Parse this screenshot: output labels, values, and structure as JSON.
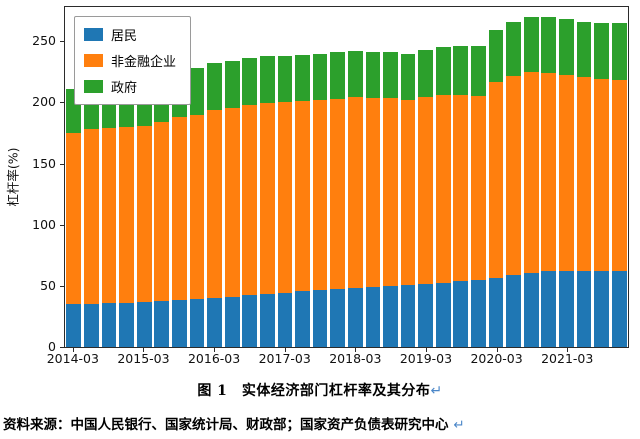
{
  "chart_data": {
    "type": "bar",
    "stacked": true,
    "title": "",
    "xlabel": "",
    "ylabel": "杠杆率(%)",
    "ylim": [
      0,
      278
    ],
    "yticks": [
      0,
      50,
      100,
      150,
      200,
      250
    ],
    "grid": false,
    "legend_position": "upper left",
    "categories": [
      "2014-03",
      "2014-06",
      "2014-09",
      "2014-12",
      "2015-03",
      "2015-06",
      "2015-09",
      "2015-12",
      "2016-03",
      "2016-06",
      "2016-09",
      "2016-12",
      "2017-03",
      "2017-06",
      "2017-09",
      "2017-12",
      "2018-03",
      "2018-06",
      "2018-09",
      "2018-12",
      "2019-03",
      "2019-06",
      "2019-09",
      "2019-12",
      "2020-03",
      "2020-06",
      "2020-09",
      "2020-12",
      "2021-03",
      "2021-06",
      "2021-09",
      "2021-12"
    ],
    "xtick_labels": [
      "2014-03",
      "2015-03",
      "2016-03",
      "2017-03",
      "2018-03",
      "2019-03",
      "2020-03",
      "2021-03"
    ],
    "xtick_every": 4,
    "series": [
      {
        "name": "居民",
        "color": "#1f77b4",
        "values": [
          35,
          35.5,
          36,
          36.2,
          36.4,
          37.5,
          38.5,
          39.2,
          40,
          41,
          42.2,
          43.2,
          44.2,
          45.5,
          46.5,
          47.4,
          48.2,
          49.2,
          50,
          50.7,
          51.5,
          52.5,
          53.7,
          54.5,
          56.5,
          58.5,
          60.5,
          62.2,
          62,
          62,
          61.8,
          62.2
        ]
      },
      {
        "name": "非金融企业",
        "color": "#ff7f0e",
        "values": [
          140,
          143,
          143,
          143.3,
          144.1,
          146.5,
          149.3,
          150.3,
          154,
          154.8,
          155.3,
          156,
          156,
          156,
          155.7,
          155.4,
          156.3,
          154.5,
          153.4,
          151.3,
          153.2,
          153.5,
          152.3,
          150.5,
          160,
          163.5,
          164.5,
          162.1,
          160.5,
          158.8,
          157.6,
          156
        ]
      },
      {
        "name": "政府",
        "color": "#2ca02c",
        "values": [
          36,
          36.5,
          37,
          37.5,
          37.5,
          38,
          38.2,
          38.5,
          38,
          38.2,
          38.5,
          38.8,
          37.8,
          37.5,
          37.8,
          38.2,
          37.5,
          37.3,
          37.6,
          38,
          38.3,
          39,
          40,
          41,
          42.5,
          44,
          45,
          45.7,
          45.5,
          45.2,
          45.6,
          46.8
        ]
      }
    ]
  },
  "caption": {
    "text": "图 1　实体经济部门杠杆率及其分布",
    "return_mark": "↵"
  },
  "source": {
    "text": "资料来源：中国人民银行、国家统计局、财政部；国家资产负债表研究中心 ",
    "return_mark": "↵"
  },
  "colors": {
    "return_mark": "#4a86c8",
    "axis": "#2b2b2b"
  }
}
